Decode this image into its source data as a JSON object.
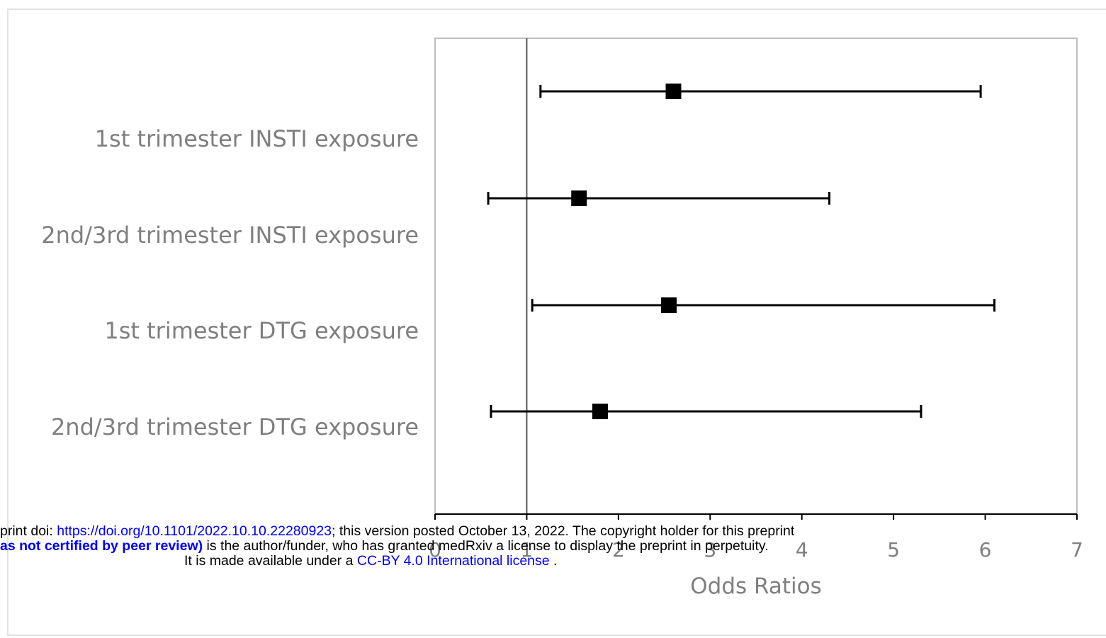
{
  "chart_data": {
    "type": "forest",
    "xlabel": "Odds Ratios",
    "xlim": [
      0,
      7
    ],
    "xticks": [
      0,
      1,
      2,
      3,
      4,
      5,
      6,
      7
    ],
    "reference_line": 1,
    "rows": [
      {
        "label": "1st trimester INSTI exposure",
        "or": 2.6,
        "lower": 1.15,
        "upper": 5.95
      },
      {
        "label": "2nd/3rd trimester INSTI exposure",
        "or": 1.57,
        "lower": 0.58,
        "upper": 4.3
      },
      {
        "label": "1st trimester DTG exposure",
        "or": 2.55,
        "lower": 1.06,
        "upper": 6.1
      },
      {
        "label": "2nd/3rd trimester DTG exposure",
        "or": 1.8,
        "lower": 0.61,
        "upper": 5.3
      }
    ],
    "colors": {
      "marker": "#000000",
      "text": "#7f7f7f",
      "frame": "#bfbfbf"
    }
  },
  "notice": {
    "line1_prefix": "print doi: ",
    "line1_link": "https://doi.org/10.1101/2022.10.10.22280923",
    "line1_suffix": "; this version posted October 13, 2022. The copyright holder for this preprint",
    "line2_bold": "as not certified by peer review)",
    "line2_rest": " is the author/funder, who has granted medRxiv a license to display the preprint in perpetuity.",
    "line3_prefix": "It is made available under a ",
    "line3_link": "CC-BY 4.0 International license",
    "line3_suffix": " ."
  }
}
